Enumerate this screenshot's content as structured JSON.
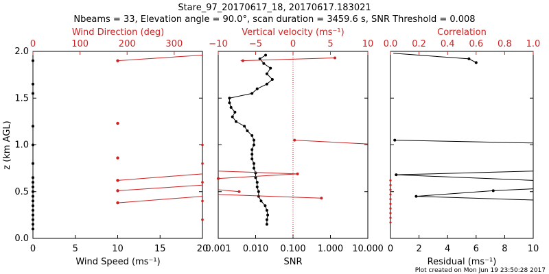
{
  "title": {
    "line1": "Stare_97_20170617_18, 20170617.183021",
    "line2": "Nbeams = 33, Elevation angle = 90.0°, scan duration = 3459.6 s, SNR Threshold = 0.008"
  },
  "footer": "Plot created on Mon Jun 19 23:50:28 2017",
  "colors": {
    "primary": "#000000",
    "secondary": "#cc2222"
  },
  "chart_data": [
    {
      "type": "scatter",
      "title": "Wind Direction / Wind Speed",
      "ylabel": "z (km AGL)",
      "ylim": [
        0,
        2.0
      ],
      "yticks": [
        "0.0",
        "0.5",
        "1.0",
        "1.5",
        "2.0"
      ],
      "xlabel": "Wind Speed (ms⁻¹)",
      "xlim": [
        0,
        20
      ],
      "xticks": [
        "0",
        "5",
        "10",
        "15",
        "20"
      ],
      "top_axis_label": "Wind Direction (deg)",
      "top_lim": [
        0,
        360
      ],
      "top_ticks": [
        "0",
        "100",
        "200",
        "300"
      ],
      "black_series_speed_vs_z": [
        [
          0,
          1.9
        ],
        [
          0,
          1.65
        ],
        [
          0,
          1.55
        ],
        [
          0,
          1.2
        ],
        [
          0,
          1.0
        ],
        [
          0,
          0.8
        ],
        [
          0,
          0.65
        ],
        [
          0,
          0.6
        ],
        [
          0,
          0.55
        ],
        [
          0,
          0.5
        ],
        [
          0,
          0.45
        ],
        [
          0,
          0.4
        ],
        [
          0,
          0.35
        ],
        [
          0,
          0.3
        ],
        [
          0,
          0.25
        ],
        [
          0,
          0.2
        ],
        [
          0,
          0.15
        ],
        [
          0,
          0.1
        ]
      ],
      "red_series_direction_vs_z": [
        {
          "z": 1.9,
          "dir": 180,
          "line_to": [
            360,
            1.96
          ]
        },
        {
          "z": 1.23,
          "dir": 180
        },
        {
          "z": 0.86,
          "dir": 180
        },
        {
          "z": 0.62,
          "dir": 180,
          "line_to": [
            360,
            0.69
          ]
        },
        {
          "z": 0.51,
          "dir": 180,
          "line_to": [
            360,
            0.57
          ]
        },
        {
          "z": 0.38,
          "dir": 180,
          "line_to": [
            360,
            0.45
          ]
        }
      ]
    },
    {
      "type": "line",
      "title": "Vertical velocity / SNR",
      "xlabel": "SNR",
      "xscale": "log",
      "xlim": [
        0.001,
        10
      ],
      "xticks": [
        "0.001",
        "0.010",
        "0.100",
        "1.000",
        "10.000"
      ],
      "top_axis_label": "Vertical velocity (ms⁻¹)",
      "top_lim": [
        -10,
        10
      ],
      "top_ticks": [
        "−10",
        "−5",
        "0",
        "5",
        "10"
      ],
      "snr_series": [
        [
          0.0185,
          1.96
        ],
        [
          0.013,
          1.92
        ],
        [
          0.0165,
          1.87
        ],
        [
          0.025,
          1.82
        ],
        [
          0.02,
          1.76
        ],
        [
          0.028,
          1.7
        ],
        [
          0.02,
          1.65
        ],
        [
          0.011,
          1.6
        ],
        [
          0.008,
          1.55
        ],
        [
          0.002,
          1.5
        ],
        [
          0.002,
          1.45
        ],
        [
          0.0022,
          1.4
        ],
        [
          0.0028,
          1.35
        ],
        [
          0.0024,
          1.3
        ],
        [
          0.003,
          1.25
        ],
        [
          0.005,
          1.2
        ],
        [
          0.006,
          1.15
        ],
        [
          0.008,
          1.1
        ],
        [
          0.009,
          1.05
        ],
        [
          0.009,
          1.0
        ],
        [
          0.008,
          0.95
        ],
        [
          0.008,
          0.9
        ],
        [
          0.008,
          0.85
        ],
        [
          0.009,
          0.8
        ],
        [
          0.009,
          0.75
        ],
        [
          0.01,
          0.7
        ],
        [
          0.01,
          0.65
        ],
        [
          0.011,
          0.6
        ],
        [
          0.011,
          0.55
        ],
        [
          0.012,
          0.5
        ],
        [
          0.012,
          0.45
        ],
        [
          0.014,
          0.4
        ],
        [
          0.018,
          0.35
        ],
        [
          0.02,
          0.3
        ],
        [
          0.021,
          0.25
        ],
        [
          0.02,
          0.2
        ],
        [
          0.02,
          0.15
        ]
      ],
      "vertical_velocity_points": [
        {
          "w": 5.6,
          "z": 1.93,
          "line_to": [
            -7.0,
            1.9
          ]
        },
        {
          "w": -6.7,
          "z": 1.9
        },
        {
          "w": 0.2,
          "z": 1.05,
          "line_to": [
            10,
            1.01
          ]
        },
        {
          "w": 0.6,
          "z": 0.69,
          "line_to": [
            -10,
            0.72
          ]
        },
        {
          "w": -10,
          "z": 0.64,
          "line_to": [
            0.6,
            0.69
          ]
        },
        {
          "w": -7.2,
          "z": 0.5,
          "line_to": [
            -10,
            0.52
          ]
        },
        {
          "w": 3.8,
          "z": 0.43,
          "line_to": [
            -10,
            0.47
          ]
        }
      ],
      "reference_line": {
        "w": 0,
        "style": "dotted"
      }
    },
    {
      "type": "line",
      "title": "Correlation / Residual",
      "xlabel": "Residual (ms⁻¹)",
      "xlim": [
        0,
        10
      ],
      "xticks": [
        "0",
        "2",
        "4",
        "6",
        "8",
        "10"
      ],
      "top_axis_label": "Correlation",
      "top_lim": [
        0,
        1.0
      ],
      "top_ticks": [
        "0.0",
        "0.2",
        "0.4",
        "0.6",
        "0.8",
        "1.0"
      ],
      "residual_segments": [
        [
          [
            0.2,
            1.98
          ],
          [
            5.5,
            1.92
          ],
          [
            6.0,
            1.88
          ]
        ],
        [
          [
            0.3,
            1.05
          ],
          [
            10,
            1.02
          ]
        ],
        [
          [
            0.4,
            0.68
          ],
          [
            10,
            0.72
          ]
        ],
        [
          [
            0.4,
            0.68
          ],
          [
            10,
            0.62
          ]
        ],
        [
          [
            7.2,
            0.51
          ],
          [
            10,
            0.53
          ]
        ],
        [
          [
            1.8,
            0.45
          ],
          [
            7.2,
            0.51
          ]
        ],
        [
          [
            1.8,
            0.45
          ],
          [
            10,
            0.41
          ]
        ]
      ],
      "residual_points": [
        [
          5.5,
          1.92
        ],
        [
          6.0,
          1.88
        ],
        [
          0.3,
          1.05
        ],
        [
          0.4,
          0.68
        ],
        [
          7.2,
          0.51
        ],
        [
          1.8,
          0.45
        ]
      ],
      "correlation_points_z": [
        0.62,
        0.57,
        0.52,
        0.47,
        0.42,
        0.37,
        0.32,
        0.27,
        0.22,
        0.17
      ]
    }
  ]
}
